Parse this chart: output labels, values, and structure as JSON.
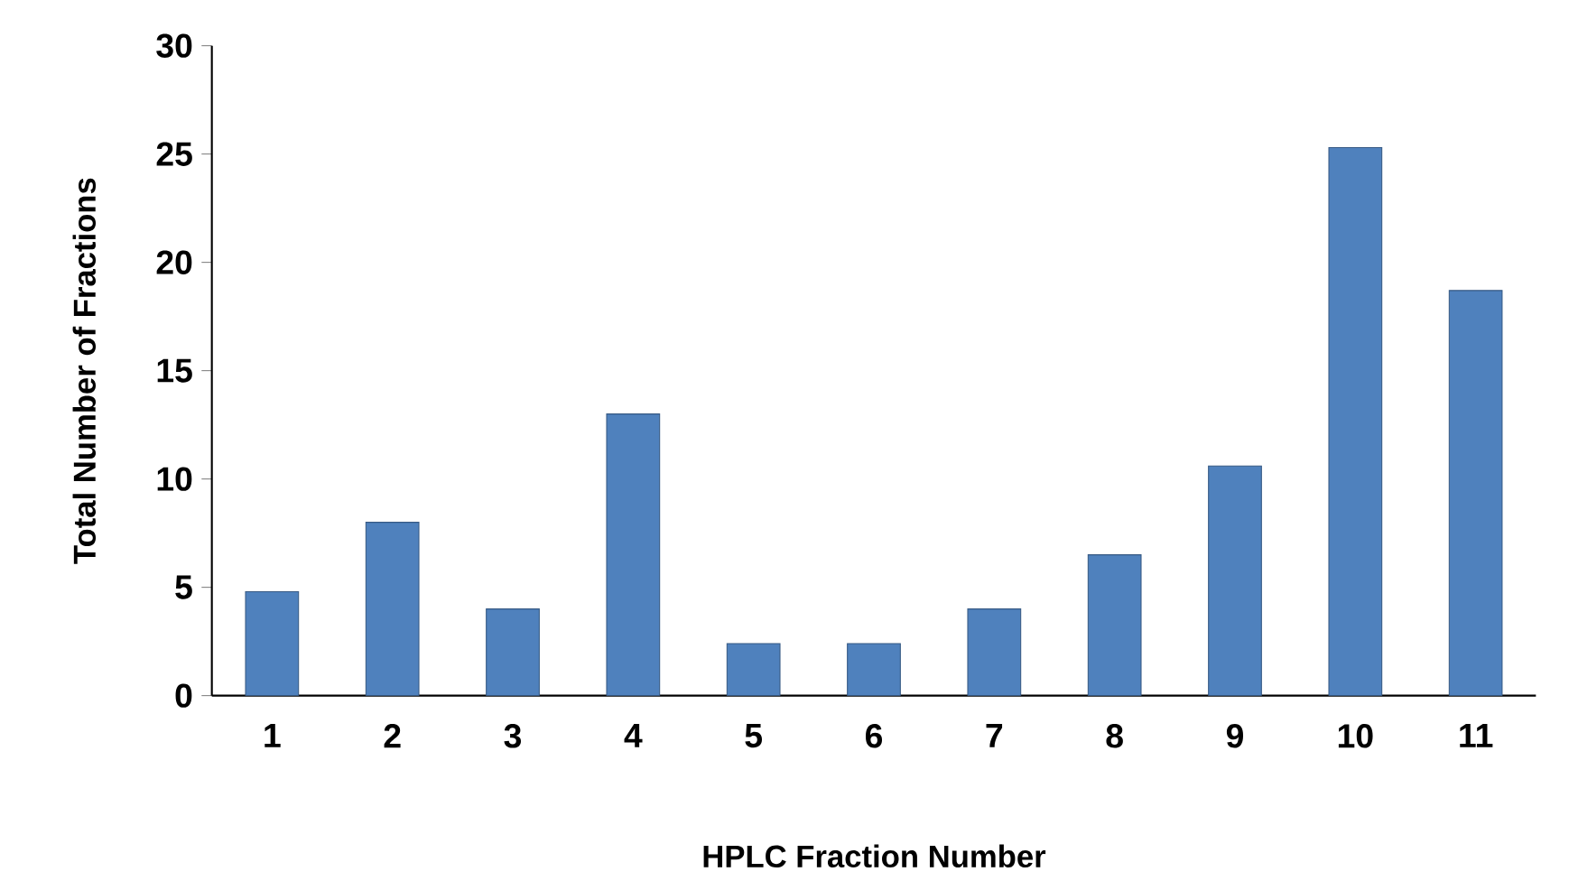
{
  "chart_data": {
    "type": "bar",
    "xlabel": "HPLC Fraction Number",
    "ylabel": "Total Number of Fractions",
    "categories": [
      "1",
      "2",
      "3",
      "4",
      "5",
      "6",
      "7",
      "8",
      "9",
      "10",
      "11"
    ],
    "values": [
      4.8,
      8,
      4,
      13,
      2.4,
      2.4,
      4,
      6.5,
      10.6,
      25.3,
      18.7
    ],
    "color": "#4f81bd",
    "ylim": [
      0,
      30
    ],
    "yticks": [
      0,
      5,
      10,
      15,
      20,
      25,
      30
    ],
    "grid": false
  }
}
